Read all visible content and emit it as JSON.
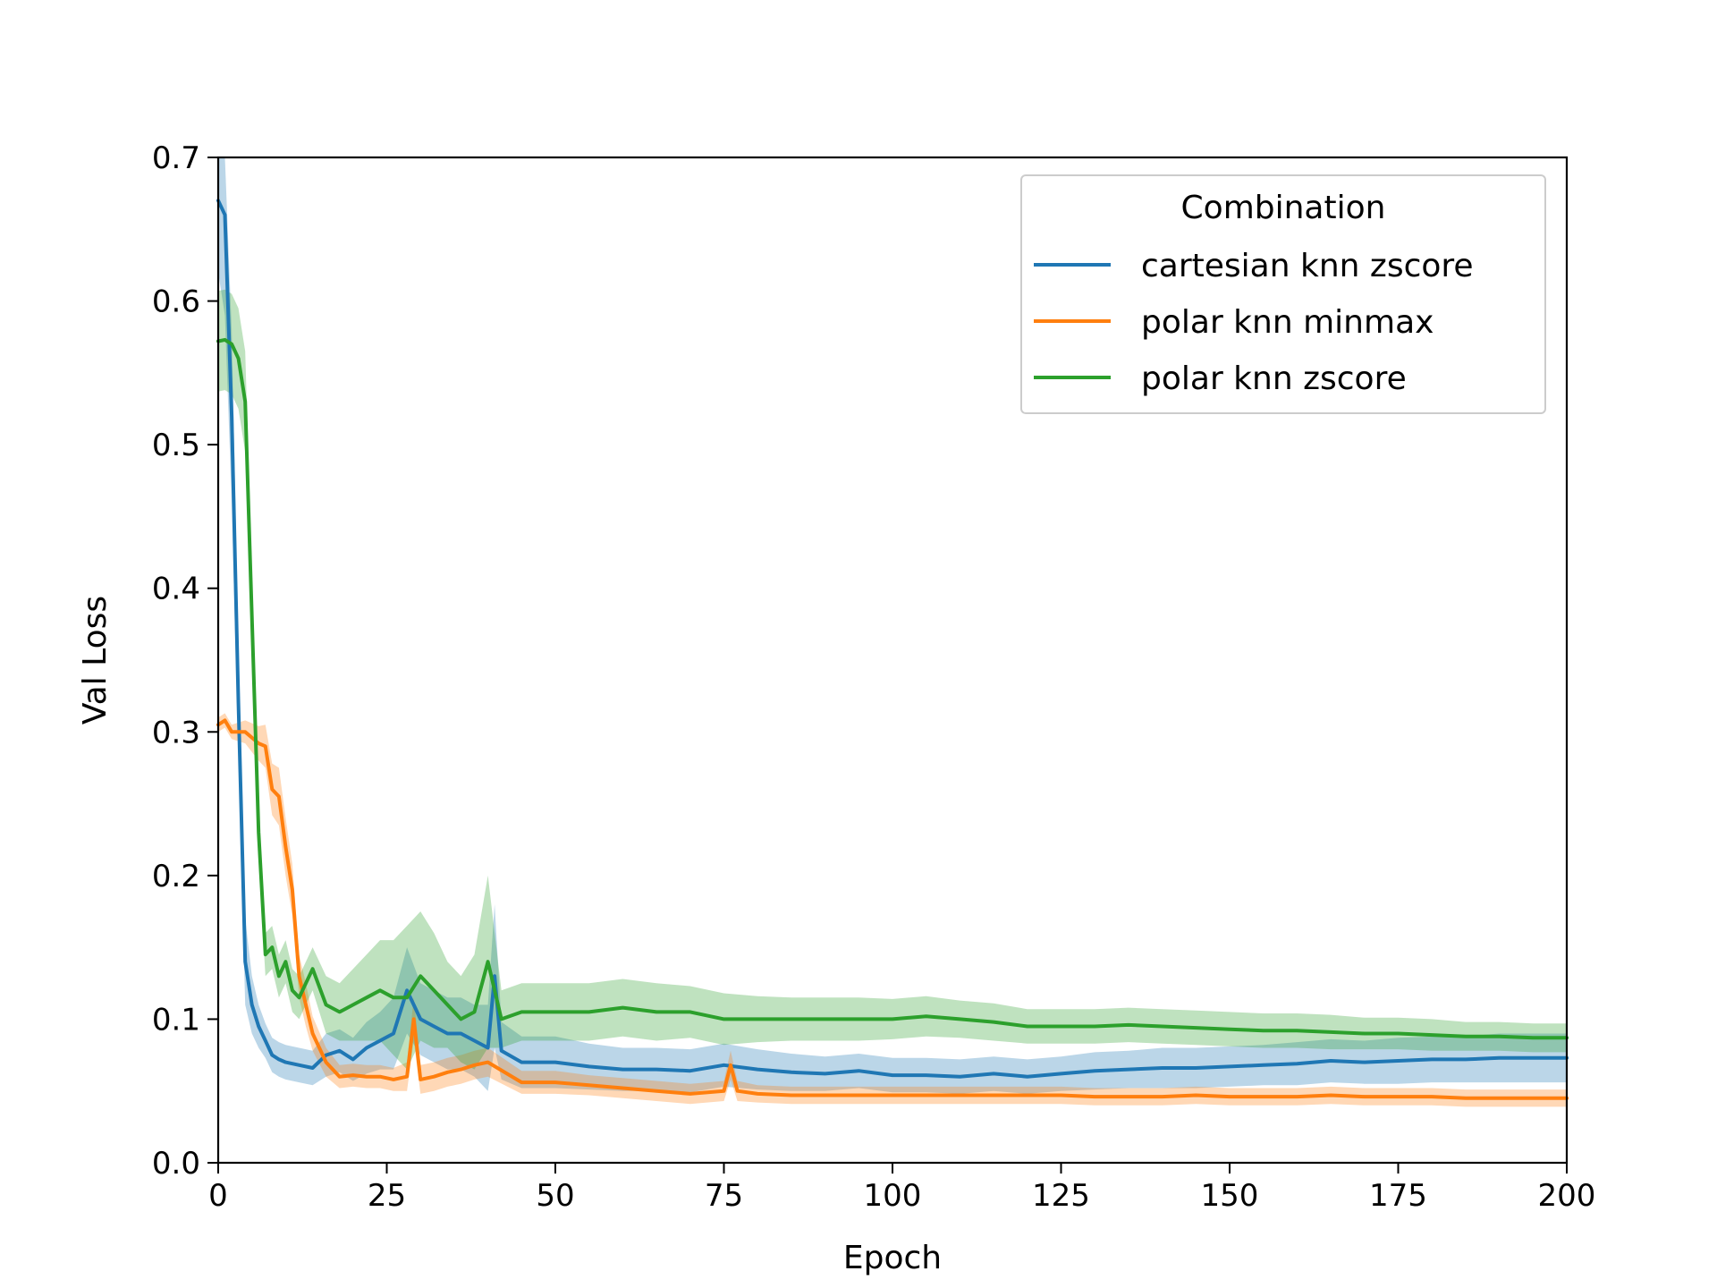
{
  "chart_data": {
    "type": "line",
    "title": "",
    "xlabel": "Epoch",
    "ylabel": "Val Loss",
    "xlim": [
      0,
      200
    ],
    "ylim": [
      0,
      0.7
    ],
    "xticks": [
      0,
      25,
      50,
      75,
      100,
      125,
      150,
      175,
      200
    ],
    "yticks": [
      0.0,
      0.1,
      0.2,
      0.3,
      0.4,
      0.5,
      0.6,
      0.7
    ],
    "grid": false,
    "legend": {
      "title": "Combination",
      "placement": "upper right"
    },
    "series": [
      {
        "name": "cartesian knn zscore",
        "color": "#1f77b4",
        "x": [
          0,
          1,
          2,
          3,
          4,
          5,
          6,
          7,
          8,
          9,
          10,
          12,
          14,
          16,
          18,
          20,
          22,
          24,
          26,
          28,
          30,
          32,
          34,
          36,
          38,
          40,
          41,
          42,
          45,
          50,
          55,
          60,
          65,
          70,
          75,
          80,
          85,
          90,
          95,
          100,
          105,
          110,
          115,
          120,
          125,
          130,
          135,
          140,
          145,
          150,
          155,
          160,
          165,
          170,
          175,
          180,
          185,
          190,
          195,
          200
        ],
        "values": [
          0.67,
          0.66,
          0.52,
          0.32,
          0.14,
          0.11,
          0.095,
          0.085,
          0.075,
          0.072,
          0.07,
          0.068,
          0.066,
          0.075,
          0.078,
          0.072,
          0.08,
          0.085,
          0.09,
          0.12,
          0.1,
          0.095,
          0.09,
          0.09,
          0.085,
          0.08,
          0.13,
          0.078,
          0.07,
          0.07,
          0.067,
          0.065,
          0.065,
          0.064,
          0.068,
          0.065,
          0.063,
          0.062,
          0.064,
          0.061,
          0.061,
          0.06,
          0.062,
          0.06,
          0.062,
          0.064,
          0.065,
          0.066,
          0.066,
          0.067,
          0.068,
          0.069,
          0.071,
          0.07,
          0.071,
          0.072,
          0.072,
          0.073,
          0.073,
          0.073
        ],
        "band": [
          0.05,
          0.07,
          0.06,
          0.04,
          0.03,
          0.02,
          0.015,
          0.012,
          0.012,
          0.012,
          0.012,
          0.012,
          0.012,
          0.015,
          0.015,
          0.015,
          0.018,
          0.02,
          0.025,
          0.03,
          0.025,
          0.025,
          0.025,
          0.025,
          0.025,
          0.03,
          0.05,
          0.02,
          0.018,
          0.018,
          0.016,
          0.015,
          0.015,
          0.015,
          0.015,
          0.014,
          0.013,
          0.012,
          0.012,
          0.012,
          0.012,
          0.012,
          0.012,
          0.012,
          0.012,
          0.013,
          0.013,
          0.014,
          0.014,
          0.014,
          0.014,
          0.015,
          0.015,
          0.015,
          0.016,
          0.016,
          0.016,
          0.017,
          0.017,
          0.017
        ]
      },
      {
        "name": "polar knn minmax",
        "color": "#ff7f0e",
        "x": [
          0,
          1,
          2,
          4,
          6,
          7,
          8,
          9,
          10,
          11,
          12,
          13,
          14,
          16,
          18,
          20,
          22,
          24,
          26,
          28,
          29,
          30,
          32,
          34,
          36,
          38,
          40,
          45,
          50,
          55,
          60,
          65,
          70,
          75,
          76,
          77,
          80,
          85,
          90,
          95,
          100,
          105,
          110,
          115,
          120,
          125,
          130,
          135,
          140,
          145,
          150,
          155,
          160,
          165,
          170,
          175,
          180,
          185,
          190,
          195,
          200
        ],
        "values": [
          0.305,
          0.308,
          0.3,
          0.3,
          0.292,
          0.29,
          0.26,
          0.255,
          0.22,
          0.19,
          0.13,
          0.11,
          0.09,
          0.07,
          0.06,
          0.061,
          0.06,
          0.06,
          0.058,
          0.06,
          0.1,
          0.058,
          0.06,
          0.063,
          0.065,
          0.068,
          0.07,
          0.056,
          0.056,
          0.054,
          0.052,
          0.05,
          0.048,
          0.05,
          0.068,
          0.05,
          0.048,
          0.047,
          0.047,
          0.047,
          0.047,
          0.047,
          0.047,
          0.047,
          0.047,
          0.047,
          0.046,
          0.046,
          0.046,
          0.047,
          0.046,
          0.046,
          0.046,
          0.047,
          0.046,
          0.046,
          0.046,
          0.045,
          0.045,
          0.045,
          0.045
        ],
        "band": [
          0.005,
          0.005,
          0.005,
          0.008,
          0.012,
          0.015,
          0.018,
          0.02,
          0.02,
          0.018,
          0.015,
          0.015,
          0.012,
          0.01,
          0.008,
          0.008,
          0.008,
          0.008,
          0.008,
          0.01,
          0.015,
          0.01,
          0.01,
          0.01,
          0.01,
          0.01,
          0.01,
          0.008,
          0.008,
          0.007,
          0.007,
          0.007,
          0.007,
          0.007,
          0.01,
          0.007,
          0.006,
          0.006,
          0.006,
          0.006,
          0.006,
          0.006,
          0.006,
          0.006,
          0.006,
          0.006,
          0.006,
          0.006,
          0.006,
          0.006,
          0.006,
          0.006,
          0.006,
          0.006,
          0.006,
          0.006,
          0.006,
          0.006,
          0.006,
          0.006,
          0.006
        ]
      },
      {
        "name": "polar knn zscore",
        "color": "#2ca02c",
        "x": [
          0,
          1,
          2,
          3,
          4,
          5,
          6,
          7,
          8,
          9,
          10,
          11,
          12,
          14,
          16,
          18,
          20,
          22,
          24,
          26,
          28,
          30,
          32,
          34,
          36,
          38,
          40,
          42,
          45,
          50,
          55,
          60,
          65,
          70,
          75,
          80,
          85,
          90,
          95,
          100,
          105,
          110,
          115,
          120,
          125,
          130,
          135,
          140,
          145,
          150,
          155,
          160,
          165,
          170,
          175,
          180,
          185,
          190,
          195,
          200
        ],
        "values": [
          0.572,
          0.573,
          0.57,
          0.56,
          0.53,
          0.38,
          0.23,
          0.145,
          0.15,
          0.13,
          0.14,
          0.12,
          0.115,
          0.135,
          0.11,
          0.105,
          0.11,
          0.115,
          0.12,
          0.115,
          0.115,
          0.13,
          0.12,
          0.11,
          0.1,
          0.105,
          0.14,
          0.1,
          0.105,
          0.105,
          0.105,
          0.108,
          0.105,
          0.105,
          0.1,
          0.1,
          0.1,
          0.1,
          0.1,
          0.1,
          0.102,
          0.1,
          0.098,
          0.095,
          0.095,
          0.095,
          0.096,
          0.095,
          0.094,
          0.093,
          0.092,
          0.092,
          0.091,
          0.09,
          0.09,
          0.089,
          0.088,
          0.088,
          0.087,
          0.087
        ],
        "band": [
          0.035,
          0.035,
          0.035,
          0.035,
          0.035,
          0.03,
          0.02,
          0.015,
          0.015,
          0.015,
          0.015,
          0.015,
          0.015,
          0.015,
          0.02,
          0.02,
          0.025,
          0.03,
          0.035,
          0.04,
          0.05,
          0.045,
          0.04,
          0.03,
          0.03,
          0.04,
          0.06,
          0.02,
          0.02,
          0.02,
          0.02,
          0.02,
          0.02,
          0.018,
          0.018,
          0.016,
          0.015,
          0.015,
          0.015,
          0.014,
          0.014,
          0.013,
          0.013,
          0.012,
          0.012,
          0.012,
          0.012,
          0.012,
          0.012,
          0.012,
          0.012,
          0.012,
          0.012,
          0.011,
          0.011,
          0.011,
          0.01,
          0.01,
          0.01,
          0.01
        ]
      }
    ]
  }
}
